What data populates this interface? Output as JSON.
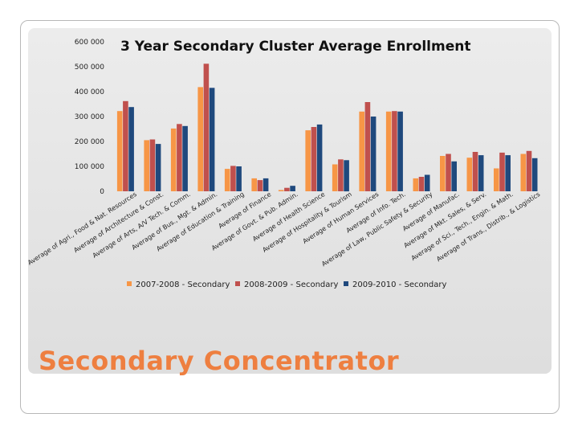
{
  "slide": {
    "heading": "Secondary Concentrator"
  },
  "chart_data": {
    "type": "bar",
    "title": "3 Year Secondary Cluster Average Enrollment",
    "xlabel": "",
    "ylabel": "",
    "ylim": [
      0,
      600000
    ],
    "yticks": [
      0,
      100000,
      200000,
      300000,
      400000,
      500000,
      600000
    ],
    "ytick_labels": [
      "0",
      "100 000",
      "200 000",
      "300 000",
      "400 000",
      "500 000",
      "600 000"
    ],
    "grid": false,
    "legend_position": "bottom",
    "categories": [
      "Average of Agri., Food & Nat. Resources",
      "Average of Architecture & Const.",
      "Average of Arts, A/V Tech. & Comm.",
      "Average of Bus., Mgt. & Admin.",
      "Average of Education & Training",
      "Average of Finance",
      "Average of Govt. & Pub. Admin.",
      "Average of Health Science",
      "Average of Hospitality & Tourism",
      "Average of Human Services",
      "Average of Info. Tech.",
      "Average of Law, Public Safety & Security",
      "Average of Manufac.",
      "Average of Mkt. Sales, & Serv.",
      "Average of Sci., Tech., Engin. & Math.",
      "Average of Trans., Distrib., & Logistics"
    ],
    "series": [
      {
        "name": "2007-2008 - Secondary",
        "color": "#f79646",
        "values": [
          322000,
          205000,
          252000,
          418000,
          90000,
          52000,
          5000,
          245000,
          108000,
          320000,
          320000,
          52000,
          142000,
          135000,
          92000,
          150000
        ]
      },
      {
        "name": "2008-2009 - Secondary",
        "color": "#c0504d",
        "values": [
          362000,
          208000,
          270000,
          512000,
          102000,
          45000,
          14000,
          258000,
          128000,
          358000,
          322000,
          58000,
          150000,
          158000,
          155000,
          162000
        ]
      },
      {
        "name": "2009-2010 - Secondary",
        "color": "#1f497d",
        "values": [
          338000,
          190000,
          262000,
          415000,
          100000,
          52000,
          22000,
          268000,
          125000,
          300000,
          320000,
          66000,
          120000,
          145000,
          145000,
          133000
        ]
      }
    ]
  }
}
